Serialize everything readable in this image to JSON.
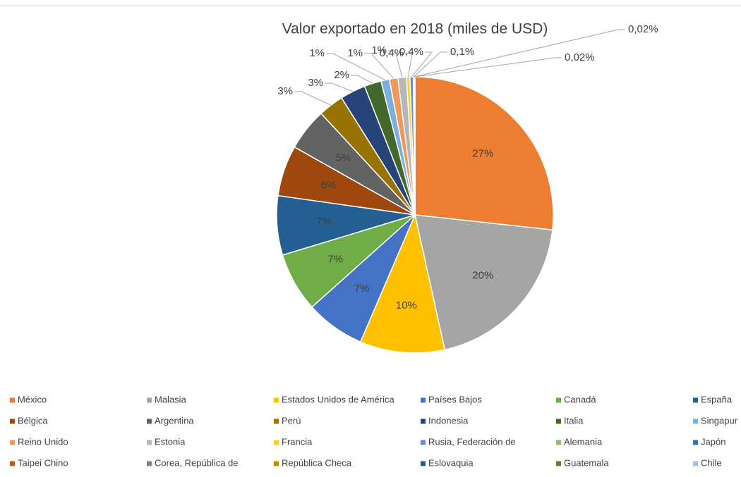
{
  "chart_data": {
    "type": "pie",
    "title": "Valor exportado en 2018 (miles de USD)",
    "categories": [
      "México",
      "Malasia",
      "Estados Unidos de América",
      "Países Bajos",
      "Canadá",
      "España",
      "Bélgica",
      "Argentina",
      "Perú",
      "Indonesia",
      "Italia",
      "Singapur",
      "Reino Unido",
      "Estonia",
      "Francia",
      "Rusia, Federación de",
      "Alemania",
      "Japón",
      "Taipei Chino",
      "Corea, República de",
      "República Checa",
      "Eslovaquia",
      "Guatemala",
      "Chile"
    ],
    "values": [
      27,
      20,
      10,
      7,
      7,
      7,
      6,
      5,
      3,
      3,
      2,
      1,
      1,
      1,
      0.4,
      0.4,
      0.1,
      0.02,
      0.02,
      0.01,
      0.01,
      0.01,
      0.01,
      0.01
    ],
    "value_labels": [
      "27%",
      "20%",
      "10%",
      "7%",
      "7%",
      "7%",
      "6%",
      "5%",
      "3%",
      "3%",
      "2%",
      "1%",
      "1%",
      "1%",
      "0,4%",
      "0,4%",
      "0,1%",
      "0,02%",
      "0,02%",
      null,
      null,
      null,
      null,
      null
    ],
    "colors": [
      "#ED7D31",
      "#A5A5A5",
      "#FFC000",
      "#4472C4",
      "#70AD47",
      "#255E91",
      "#9E480E",
      "#636363",
      "#997300",
      "#264478",
      "#43682B",
      "#7CAFDD",
      "#F1975A",
      "#B7B7B7",
      "#FFCD33",
      "#698ED0",
      "#8CC168",
      "#2E75B6",
      "#C55A11",
      "#848484",
      "#BF9000",
      "#2F5597",
      "#548235",
      "#9DC3E6"
    ],
    "legend": "bottom"
  }
}
